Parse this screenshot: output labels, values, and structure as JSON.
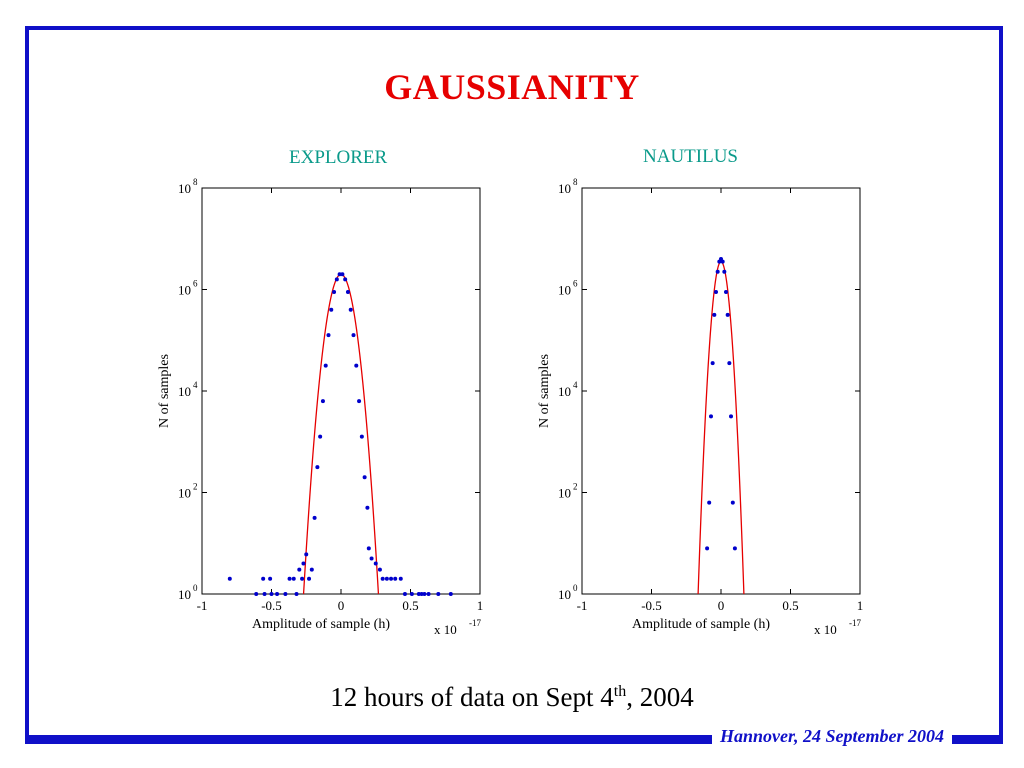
{
  "slide": {
    "title": "GAUSSIANITY",
    "caption_main": "12 hours of data on Sept 4",
    "caption_sup": "th",
    "caption_tail": ", 2004",
    "footer": "Hannover, 24 September 2004",
    "colors": {
      "frame": "#1010c8",
      "title": "#e60000",
      "plot_title": "#0a9a8a",
      "fit": "#e60000",
      "points": "#0000cc"
    }
  },
  "chart_data": [
    {
      "type": "scatter",
      "title": "EXPLORER",
      "xlabel": "Amplitude of sample (h)",
      "ylabel": "N of samples",
      "x_multiplier": "x 10",
      "x_multiplier_exp": "-17",
      "xlim": [
        -1,
        1
      ],
      "ylim_log10": [
        0,
        8
      ],
      "yscale": "log",
      "xticks": [
        "-1",
        "-0.5",
        "0",
        "0.5",
        "1"
      ],
      "xtick_values": [
        -1,
        -0.5,
        0,
        0.5,
        1
      ],
      "yticks": [
        {
          "base": "10",
          "exp": "0"
        },
        {
          "base": "10",
          "exp": "2"
        },
        {
          "base": "10",
          "exp": "4"
        },
        {
          "base": "10",
          "exp": "6"
        },
        {
          "base": "10",
          "exp": "8"
        }
      ],
      "ytick_values": [
        0,
        2,
        4,
        6,
        8
      ],
      "fit": {
        "name": "gaussian fit",
        "peak_log10": 6.3,
        "sigma": 0.05
      },
      "points": [
        {
          "x": -0.8,
          "y": 0.3
        },
        {
          "x": -0.61,
          "y": 0
        },
        {
          "x": -0.56,
          "y": 0.3
        },
        {
          "x": -0.55,
          "y": 0
        },
        {
          "x": -0.51,
          "y": 0.3
        },
        {
          "x": -0.5,
          "y": 0
        },
        {
          "x": -0.46,
          "y": 0
        },
        {
          "x": -0.4,
          "y": 0
        },
        {
          "x": -0.37,
          "y": 0.3
        },
        {
          "x": -0.34,
          "y": 0.3
        },
        {
          "x": -0.32,
          "y": 0
        },
        {
          "x": -0.3,
          "y": 0.48
        },
        {
          "x": -0.28,
          "y": 0.3
        },
        {
          "x": -0.27,
          "y": 0.6
        },
        {
          "x": -0.25,
          "y": 0.78
        },
        {
          "x": -0.23,
          "y": 0.3
        },
        {
          "x": -0.21,
          "y": 0.48
        },
        {
          "x": -0.19,
          "y": 1.5
        },
        {
          "x": -0.17,
          "y": 2.5
        },
        {
          "x": -0.15,
          "y": 3.1
        },
        {
          "x": -0.13,
          "y": 3.8
        },
        {
          "x": -0.11,
          "y": 4.5
        },
        {
          "x": -0.09,
          "y": 5.1
        },
        {
          "x": -0.07,
          "y": 5.6
        },
        {
          "x": -0.05,
          "y": 5.95
        },
        {
          "x": -0.03,
          "y": 6.2
        },
        {
          "x": -0.01,
          "y": 6.3
        },
        {
          "x": 0.01,
          "y": 6.3
        },
        {
          "x": 0.03,
          "y": 6.2
        },
        {
          "x": 0.05,
          "y": 5.95
        },
        {
          "x": 0.07,
          "y": 5.6
        },
        {
          "x": 0.09,
          "y": 5.1
        },
        {
          "x": 0.11,
          "y": 4.5
        },
        {
          "x": 0.13,
          "y": 3.8
        },
        {
          "x": 0.15,
          "y": 3.1
        },
        {
          "x": 0.17,
          "y": 2.3
        },
        {
          "x": 0.19,
          "y": 1.7
        },
        {
          "x": 0.2,
          "y": 0.9
        },
        {
          "x": 0.22,
          "y": 0.7
        },
        {
          "x": 0.25,
          "y": 0.6
        },
        {
          "x": 0.28,
          "y": 0.48
        },
        {
          "x": 0.3,
          "y": 0.3
        },
        {
          "x": 0.33,
          "y": 0.3
        },
        {
          "x": 0.36,
          "y": 0.3
        },
        {
          "x": 0.39,
          "y": 0.3
        },
        {
          "x": 0.43,
          "y": 0.3
        },
        {
          "x": 0.46,
          "y": 0
        },
        {
          "x": 0.51,
          "y": 0
        },
        {
          "x": 0.56,
          "y": 0
        },
        {
          "x": 0.58,
          "y": 0
        },
        {
          "x": 0.6,
          "y": 0
        },
        {
          "x": 0.63,
          "y": 0
        },
        {
          "x": 0.7,
          "y": 0
        },
        {
          "x": 0.79,
          "y": 0
        }
      ]
    },
    {
      "type": "scatter",
      "title": "NAUTILUS",
      "xlabel": "Amplitude of sample (h)",
      "ylabel": "N of samples",
      "x_multiplier": "x 10",
      "x_multiplier_exp": "-17",
      "xlim": [
        -1,
        1
      ],
      "ylim_log10": [
        0,
        8
      ],
      "yscale": "log",
      "xticks": [
        "-1",
        "-0.5",
        "0",
        "0.5",
        "1"
      ],
      "xtick_values": [
        -1,
        -0.5,
        0,
        0.5,
        1
      ],
      "yticks": [
        {
          "base": "10",
          "exp": "0"
        },
        {
          "base": "10",
          "exp": "2"
        },
        {
          "base": "10",
          "exp": "4"
        },
        {
          "base": "10",
          "exp": "6"
        },
        {
          "base": "10",
          "exp": "8"
        }
      ],
      "ytick_values": [
        0,
        2,
        4,
        6,
        8
      ],
      "fit": {
        "name": "gaussian fit",
        "peak_log10": 6.55,
        "sigma": 0.03
      },
      "points": [
        {
          "x": -0.1,
          "y": 0.9
        },
        {
          "x": -0.085,
          "y": 1.8
        },
        {
          "x": -0.072,
          "y": 3.5
        },
        {
          "x": -0.06,
          "y": 4.55
        },
        {
          "x": -0.048,
          "y": 5.5
        },
        {
          "x": -0.036,
          "y": 5.95
        },
        {
          "x": -0.024,
          "y": 6.35
        },
        {
          "x": -0.012,
          "y": 6.55
        },
        {
          "x": 0,
          "y": 6.6
        },
        {
          "x": 0.012,
          "y": 6.55
        },
        {
          "x": 0.024,
          "y": 6.35
        },
        {
          "x": 0.036,
          "y": 5.95
        },
        {
          "x": 0.048,
          "y": 5.5
        },
        {
          "x": 0.06,
          "y": 4.55
        },
        {
          "x": 0.072,
          "y": 3.5
        },
        {
          "x": 0.085,
          "y": 1.8
        },
        {
          "x": 0.1,
          "y": 0.9
        }
      ]
    }
  ]
}
